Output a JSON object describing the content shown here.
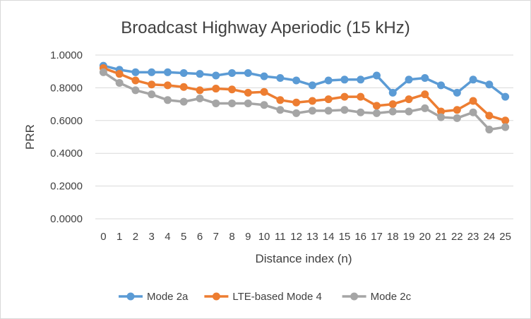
{
  "chart_data": {
    "type": "line",
    "title": "Broadcast Highway Aperiodic (15 kHz)",
    "xlabel": "Distance index (n)",
    "ylabel": "PRR",
    "ylim": [
      0,
      1
    ],
    "yticks": [
      "0.0000",
      "0.2000",
      "0.4000",
      "0.6000",
      "0.8000",
      "1.0000"
    ],
    "categories": [
      "0",
      "1",
      "2",
      "3",
      "4",
      "5",
      "6",
      "7",
      "8",
      "9",
      "10",
      "11",
      "12",
      "13",
      "14",
      "15",
      "16",
      "17",
      "18",
      "19",
      "20",
      "21",
      "22",
      "23",
      "24",
      "25"
    ],
    "grid": "horizontal",
    "legend_position": "bottom",
    "series": [
      {
        "name": "Mode 2a",
        "color": "#5B9BD5",
        "values": [
          0.935,
          0.91,
          0.895,
          0.895,
          0.895,
          0.89,
          0.885,
          0.875,
          0.89,
          0.89,
          0.87,
          0.86,
          0.845,
          0.815,
          0.845,
          0.85,
          0.85,
          0.875,
          0.77,
          0.85,
          0.86,
          0.815,
          0.77,
          0.85,
          0.82,
          0.745
        ]
      },
      {
        "name": "LTE-based Mode 4",
        "color": "#ED7D31",
        "values": [
          0.92,
          0.885,
          0.845,
          0.82,
          0.815,
          0.805,
          0.785,
          0.795,
          0.79,
          0.77,
          0.775,
          0.725,
          0.71,
          0.72,
          0.73,
          0.745,
          0.745,
          0.69,
          0.7,
          0.73,
          0.76,
          0.655,
          0.665,
          0.72,
          0.63,
          0.6
        ]
      },
      {
        "name": "Mode 2c",
        "color": "#A5A5A5",
        "values": [
          0.895,
          0.83,
          0.785,
          0.76,
          0.725,
          0.715,
          0.735,
          0.705,
          0.705,
          0.705,
          0.695,
          0.665,
          0.645,
          0.66,
          0.66,
          0.665,
          0.65,
          0.645,
          0.655,
          0.655,
          0.675,
          0.62,
          0.615,
          0.65,
          0.545,
          0.56
        ]
      }
    ]
  }
}
